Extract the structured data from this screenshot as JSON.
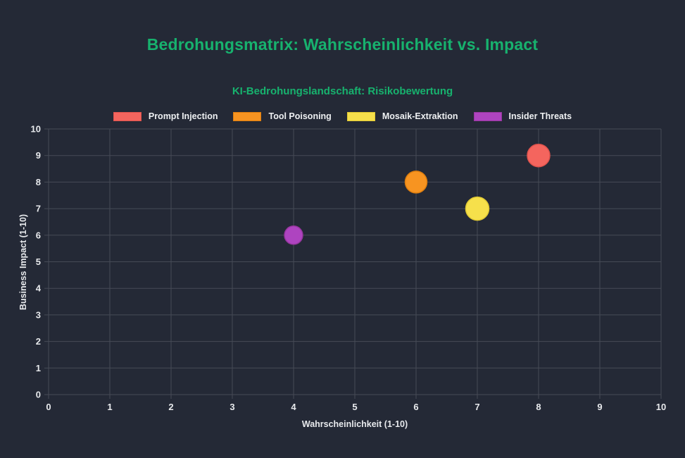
{
  "colors": {
    "background": "#242936",
    "title": "#17b26e",
    "grid": "#464b56",
    "axis_text": "#e8eaed"
  },
  "chart_data": {
    "type": "scatter",
    "title": "Bedrohungsmatrix: Wahrscheinlichkeit vs. Impact",
    "subtitle": "KI-Bedrohungslandschaft: Risikobewertung",
    "xlabel": "Wahrscheinlichkeit (1-10)",
    "ylabel": "Business Impact (1-10)",
    "xlim": [
      0,
      10
    ],
    "ylim": [
      0,
      10
    ],
    "xticks": [
      0,
      1,
      2,
      3,
      4,
      5,
      6,
      7,
      8,
      9,
      10
    ],
    "yticks": [
      0,
      1,
      2,
      3,
      4,
      5,
      6,
      7,
      8,
      9,
      10
    ],
    "grid": true,
    "legend_position": "top",
    "series": [
      {
        "name": "Prompt Injection",
        "x": 8,
        "y": 9,
        "radius": 16,
        "color": "#f4655e",
        "border_color": "#df534d"
      },
      {
        "name": "Tool Poisoning",
        "x": 6,
        "y": 8,
        "radius": 15.5,
        "color": "#f79421",
        "border_color": "#de7e0e"
      },
      {
        "name": "Mosaik-Extraktion",
        "x": 7,
        "y": 7,
        "radius": 16.5,
        "color": "#f6e04b",
        "border_color": "#e0c933"
      },
      {
        "name": "Insider Threats",
        "x": 4,
        "y": 6,
        "radius": 13,
        "color": "#ae44c0",
        "border_color": "#97369f"
      }
    ]
  }
}
